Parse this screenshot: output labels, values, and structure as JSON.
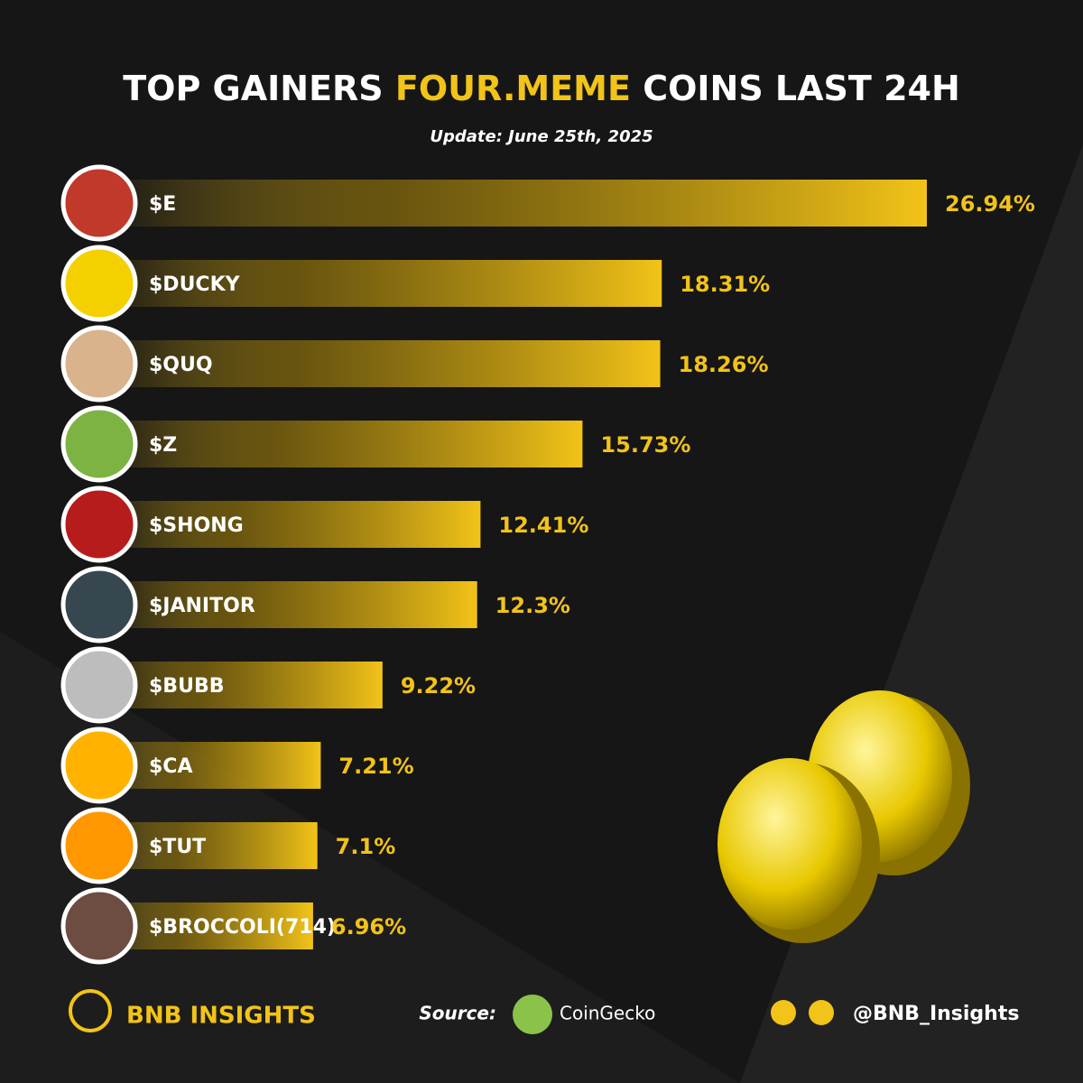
{
  "chart_data": {
    "type": "bar",
    "orientation": "horizontal",
    "title": {
      "before": "TOP GAINERS",
      "highlight": "FOUR.MEME",
      "after": "COINS LAST 24H"
    },
    "subtitle": "Update: June 25th, 2025",
    "categories": [
      "$E",
      "$DUCKY",
      "$QUQ",
      "$Z",
      "$SHONG",
      "$JANITOR",
      "$BUBB",
      "$CA",
      "$TUT",
      "$BROCCOLI(714)"
    ],
    "values": [
      26.94,
      18.31,
      18.26,
      15.73,
      12.41,
      12.3,
      9.22,
      7.21,
      7.1,
      6.96
    ],
    "value_labels": [
      "26.94%",
      "18.31%",
      "18.26%",
      "15.73%",
      "12.41%",
      "12.3%",
      "9.22%",
      "7.21%",
      "7.1%",
      "6.96%"
    ],
    "color": "#f2c318"
  },
  "footer": {
    "brand": "BNB INSIGHTS",
    "source_label": "Source:",
    "source": "CoinGecko",
    "handle": "@BNB_Insights"
  }
}
